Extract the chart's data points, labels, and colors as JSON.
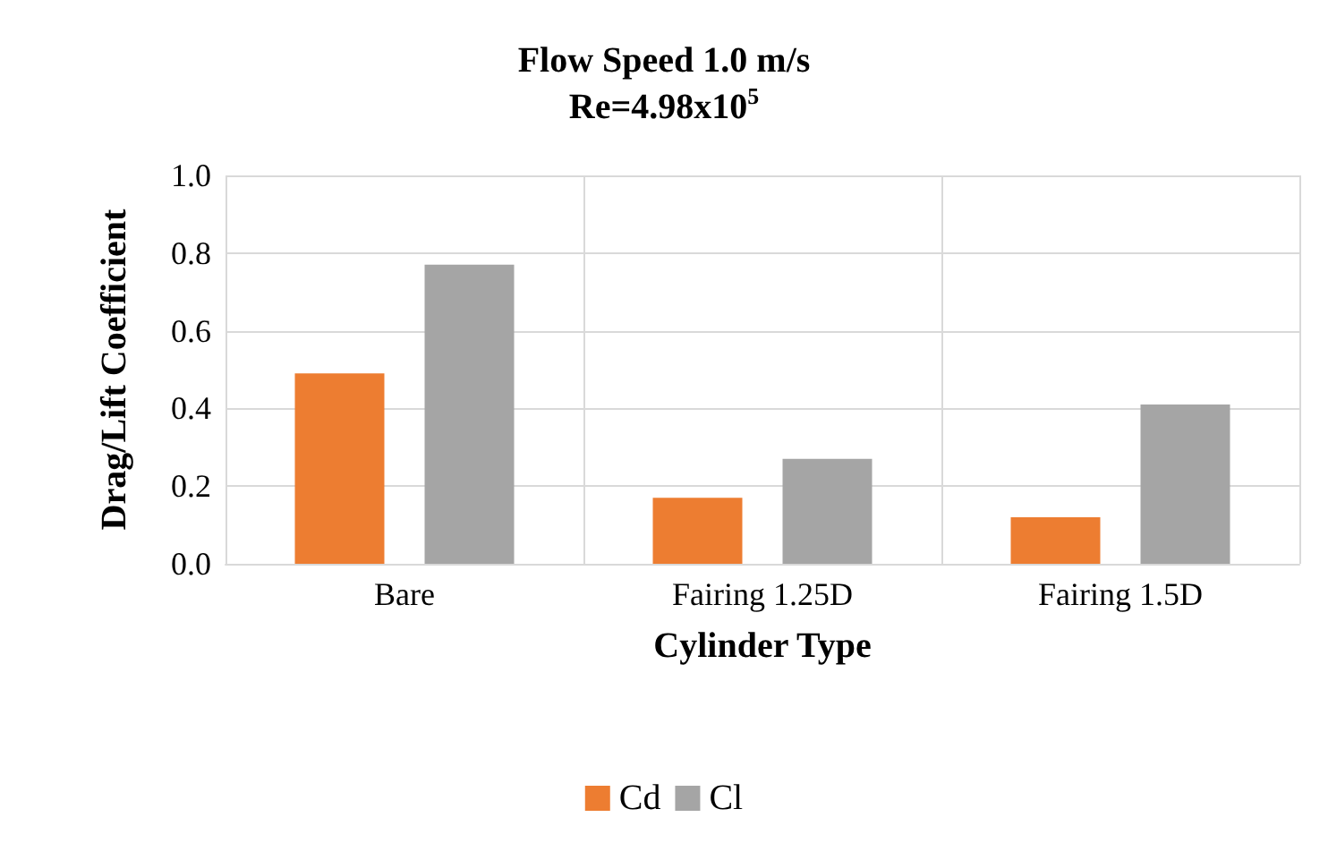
{
  "chart_data": {
    "type": "bar",
    "title": "Flow Speed 1.0 m/s\nRe=4.98x10$^{5}$",
    "xlabel": "Cylinder Type",
    "ylabel": "Drag/Lift Coefficient",
    "categories": [
      "Bare",
      "Fairing 1.25D",
      "Fairing 1.5D"
    ],
    "series": [
      {
        "name": "Cd",
        "color": "#ed7d31",
        "values": [
          0.49,
          0.17,
          0.12
        ]
      },
      {
        "name": "Cl",
        "color": "#a5a5a5",
        "values": [
          0.77,
          0.27,
          0.41
        ]
      }
    ],
    "ylim": [
      0,
      1
    ],
    "yticks": [
      {
        "value": 0,
        "label": "0.0"
      },
      0.2,
      0.4,
      0.6,
      0.8,
      {
        "value": 1,
        "label": "1.0"
      }
    ],
    "grid": true,
    "legend": "bottom"
  }
}
